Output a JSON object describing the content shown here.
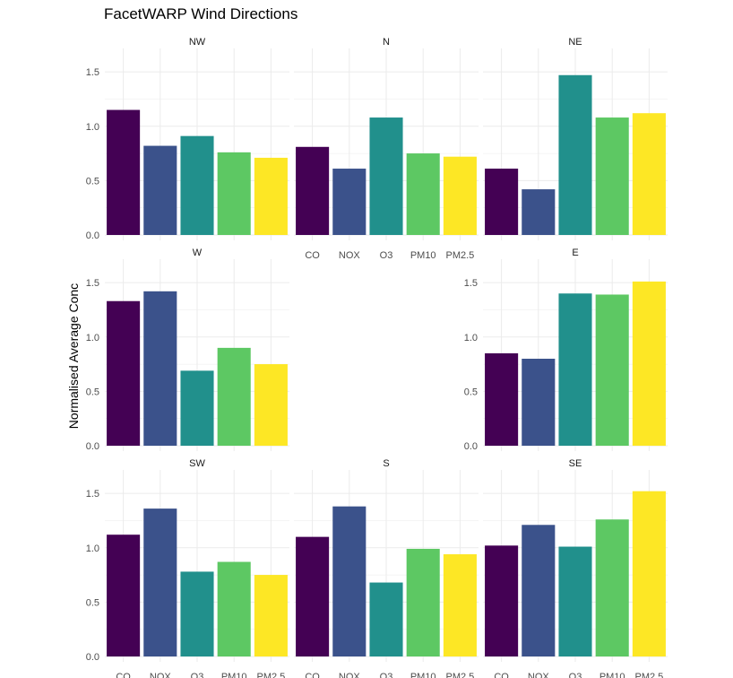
{
  "chart_data": {
    "type": "bar",
    "title": "FacetWARP Wind Directions",
    "ylabel": "Normalised Average Conc",
    "xlabel": "",
    "categories": [
      "CO",
      "NOX",
      "O3",
      "PM10",
      "PM2.5"
    ],
    "ylim": [
      0,
      1.6
    ],
    "yticks": [
      0.0,
      0.5,
      1.0,
      1.5
    ],
    "ytick_labels": [
      "0.0",
      "0.5",
      "1.0",
      "1.5"
    ],
    "grid": true,
    "legend": "none",
    "colors": [
      "#440154",
      "#3B528B",
      "#21908C",
      "#5DC863",
      "#FDE725"
    ],
    "grid_color": "#EBEBEB",
    "facets": [
      {
        "name": "NW",
        "values": [
          1.15,
          0.82,
          0.91,
          0.76,
          0.71
        ]
      },
      {
        "name": "N",
        "values": [
          0.81,
          0.61,
          1.08,
          0.75,
          0.72
        ]
      },
      {
        "name": "NE",
        "values": [
          0.61,
          0.42,
          1.47,
          1.08,
          1.12
        ]
      },
      {
        "name": "W",
        "values": [
          1.33,
          1.42,
          0.69,
          0.9,
          0.75
        ]
      },
      {
        "name": "E",
        "values": [
          0.85,
          0.8,
          1.4,
          1.39,
          1.51
        ]
      },
      {
        "name": "SW",
        "values": [
          1.12,
          1.36,
          0.78,
          0.87,
          0.75
        ]
      },
      {
        "name": "S",
        "values": [
          1.1,
          1.38,
          0.68,
          0.99,
          0.94
        ]
      },
      {
        "name": "SE",
        "values": [
          1.02,
          1.21,
          1.01,
          1.26,
          1.52
        ]
      }
    ]
  }
}
